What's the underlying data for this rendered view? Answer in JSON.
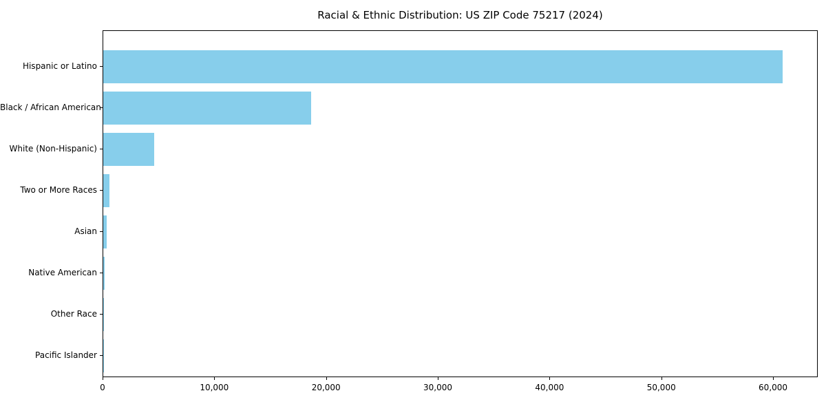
{
  "chart_data": {
    "type": "bar",
    "orientation": "horizontal",
    "title": "Racial & Ethnic Distribution: US ZIP Code 75217 (2024)",
    "categories": [
      "Hispanic or Latino",
      "Black / African American",
      "White (Non-Hispanic)",
      "Two or More Races",
      "Asian",
      "Native American",
      "Other Race",
      "Pacific Islander"
    ],
    "values": [
      60800,
      18600,
      4550,
      550,
      330,
      150,
      50,
      15
    ],
    "bar_color": "#87CEEB",
    "xlabel": "",
    "ylabel": "",
    "xlim": [
      0,
      64000
    ],
    "xticks": [
      {
        "value": 0,
        "label": "0"
      },
      {
        "value": 10000,
        "label": "10,000"
      },
      {
        "value": 20000,
        "label": "20,000"
      },
      {
        "value": 30000,
        "label": "30,000"
      },
      {
        "value": 40000,
        "label": "40,000"
      },
      {
        "value": 50000,
        "label": "50,000"
      },
      {
        "value": 60000,
        "label": "60,000"
      }
    ],
    "grid": false,
    "legend": null,
    "axis_color": "#000000",
    "background_color": "#ffffff"
  }
}
